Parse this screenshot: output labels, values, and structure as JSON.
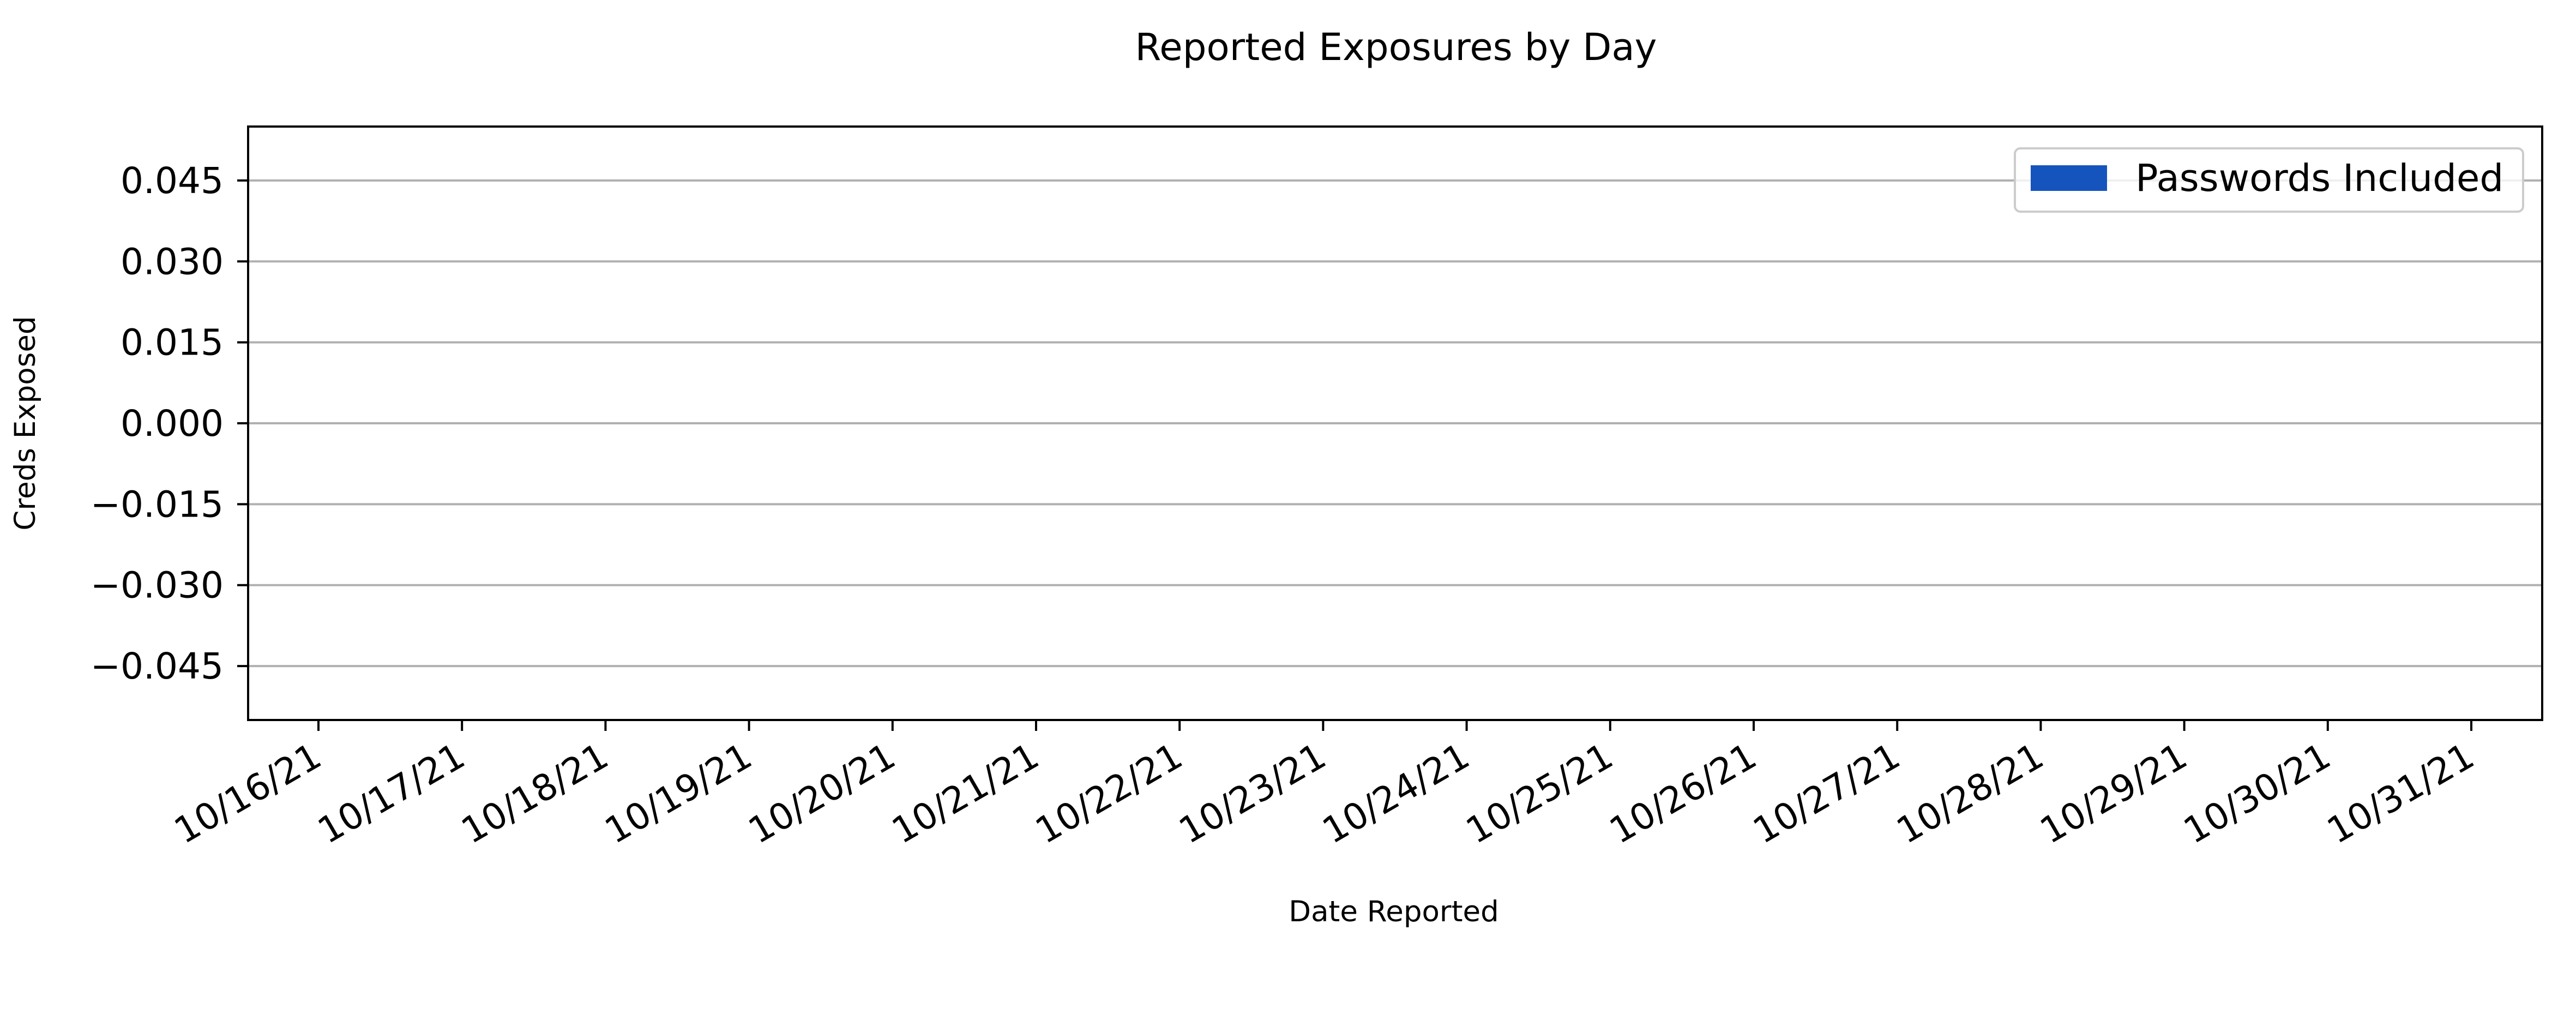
{
  "chart_data": {
    "type": "bar",
    "title": "Reported Exposures by Day",
    "xlabel": "Date Reported",
    "ylabel": "Creds Exposed",
    "categories": [
      "10/16/21",
      "10/17/21",
      "10/18/21",
      "10/19/21",
      "10/20/21",
      "10/21/21",
      "10/22/21",
      "10/23/21",
      "10/24/21",
      "10/25/21",
      "10/26/21",
      "10/27/21",
      "10/28/21",
      "10/29/21",
      "10/30/21",
      "10/31/21"
    ],
    "series": [
      {
        "name": "Passwords Included",
        "color": "#1654bd",
        "values": [
          0,
          0,
          0,
          0,
          0,
          0,
          0,
          0,
          0,
          0,
          0,
          0,
          0,
          0,
          0,
          0
        ]
      }
    ],
    "ylim": [
      -0.055,
      0.055
    ],
    "yticks": [
      0.045,
      0.03,
      0.015,
      0.0,
      -0.015,
      -0.03,
      -0.045
    ],
    "ytick_labels": [
      "0.045",
      "0.030",
      "0.015",
      "0.000",
      "−0.015",
      "−0.030",
      "−0.045"
    ],
    "grid": "y-axis",
    "grid_color": "#b0b0b0",
    "legend_position": "top-right"
  }
}
